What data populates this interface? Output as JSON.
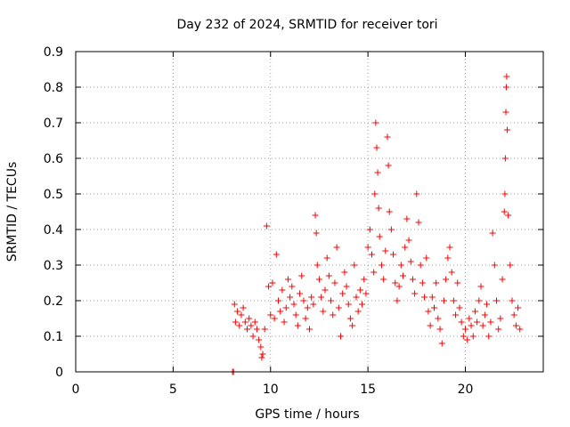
{
  "chart_data": {
    "type": "scatter",
    "title": "Day 232 of 2024, SRMTID for receiver tori",
    "xlabel": "GPS time / hours",
    "ylabel": "SRMTID / TECUs",
    "xlim": [
      0,
      24
    ],
    "ylim": [
      0,
      0.9
    ],
    "xticks": [
      0,
      5,
      10,
      15,
      20
    ],
    "xtick_labels": [
      "0",
      "5",
      "10",
      "15",
      "20"
    ],
    "yticks": [
      0,
      0.1,
      0.2,
      0.3,
      0.4,
      0.5,
      0.6,
      0.7,
      0.8,
      0.9
    ],
    "ytick_labels": [
      "0",
      "0.1",
      "0.2",
      "0.3",
      "0.4",
      "0.5",
      "0.6",
      "0.7",
      "0.8",
      "0.9"
    ],
    "grid": true,
    "marker": "plus",
    "color": "#ff0000",
    "series": [
      {
        "name": "SRMTID",
        "points": [
          [
            8.05,
            0.0
          ],
          [
            8.1,
            0.0
          ],
          [
            8.15,
            0.19
          ],
          [
            8.2,
            0.14
          ],
          [
            8.3,
            0.17
          ],
          [
            8.4,
            0.13
          ],
          [
            8.5,
            0.16
          ],
          [
            8.6,
            0.18
          ],
          [
            8.7,
            0.14
          ],
          [
            8.8,
            0.12
          ],
          [
            8.9,
            0.15
          ],
          [
            9.0,
            0.13
          ],
          [
            9.1,
            0.1
          ],
          [
            9.2,
            0.14
          ],
          [
            9.3,
            0.12
          ],
          [
            9.4,
            0.09
          ],
          [
            9.5,
            0.07
          ],
          [
            9.55,
            0.04
          ],
          [
            9.6,
            0.05
          ],
          [
            9.7,
            0.12
          ],
          [
            9.8,
            0.41
          ],
          [
            9.9,
            0.24
          ],
          [
            10.0,
            0.16
          ],
          [
            10.1,
            0.25
          ],
          [
            10.2,
            0.15
          ],
          [
            10.3,
            0.33
          ],
          [
            10.4,
            0.2
          ],
          [
            10.5,
            0.17
          ],
          [
            10.6,
            0.23
          ],
          [
            10.7,
            0.14
          ],
          [
            10.8,
            0.18
          ],
          [
            10.9,
            0.26
          ],
          [
            11.0,
            0.21
          ],
          [
            11.1,
            0.24
          ],
          [
            11.2,
            0.19
          ],
          [
            11.3,
            0.16
          ],
          [
            11.4,
            0.13
          ],
          [
            11.5,
            0.22
          ],
          [
            11.6,
            0.27
          ],
          [
            11.7,
            0.2
          ],
          [
            11.8,
            0.15
          ],
          [
            11.9,
            0.18
          ],
          [
            12.0,
            0.12
          ],
          [
            12.1,
            0.21
          ],
          [
            12.2,
            0.19
          ],
          [
            12.3,
            0.44
          ],
          [
            12.35,
            0.39
          ],
          [
            12.4,
            0.3
          ],
          [
            12.5,
            0.26
          ],
          [
            12.6,
            0.21
          ],
          [
            12.7,
            0.17
          ],
          [
            12.8,
            0.23
          ],
          [
            12.9,
            0.32
          ],
          [
            13.0,
            0.27
          ],
          [
            13.1,
            0.2
          ],
          [
            13.2,
            0.16
          ],
          [
            13.3,
            0.25
          ],
          [
            13.4,
            0.35
          ],
          [
            13.5,
            0.18
          ],
          [
            13.6,
            0.1
          ],
          [
            13.7,
            0.22
          ],
          [
            13.8,
            0.28
          ],
          [
            13.9,
            0.24
          ],
          [
            14.0,
            0.19
          ],
          [
            14.1,
            0.15
          ],
          [
            14.2,
            0.13
          ],
          [
            14.3,
            0.3
          ],
          [
            14.4,
            0.21
          ],
          [
            14.5,
            0.17
          ],
          [
            14.6,
            0.23
          ],
          [
            14.7,
            0.19
          ],
          [
            14.8,
            0.26
          ],
          [
            14.9,
            0.22
          ],
          [
            15.0,
            0.35
          ],
          [
            15.1,
            0.4
          ],
          [
            15.2,
            0.33
          ],
          [
            15.3,
            0.28
          ],
          [
            15.35,
            0.5
          ],
          [
            15.4,
            0.7
          ],
          [
            15.45,
            0.63
          ],
          [
            15.5,
            0.56
          ],
          [
            15.55,
            0.46
          ],
          [
            15.6,
            0.38
          ],
          [
            15.7,
            0.3
          ],
          [
            15.8,
            0.26
          ],
          [
            15.9,
            0.34
          ],
          [
            16.0,
            0.66
          ],
          [
            16.05,
            0.58
          ],
          [
            16.1,
            0.45
          ],
          [
            16.2,
            0.4
          ],
          [
            16.3,
            0.33
          ],
          [
            16.4,
            0.25
          ],
          [
            16.5,
            0.2
          ],
          [
            16.6,
            0.24
          ],
          [
            16.7,
            0.3
          ],
          [
            16.8,
            0.27
          ],
          [
            16.9,
            0.35
          ],
          [
            17.0,
            0.43
          ],
          [
            17.1,
            0.37
          ],
          [
            17.2,
            0.31
          ],
          [
            17.3,
            0.26
          ],
          [
            17.4,
            0.22
          ],
          [
            17.5,
            0.5
          ],
          [
            17.6,
            0.42
          ],
          [
            17.7,
            0.3
          ],
          [
            17.8,
            0.25
          ],
          [
            17.9,
            0.21
          ],
          [
            18.0,
            0.32
          ],
          [
            18.1,
            0.17
          ],
          [
            18.2,
            0.13
          ],
          [
            18.3,
            0.21
          ],
          [
            18.4,
            0.18
          ],
          [
            18.5,
            0.25
          ],
          [
            18.6,
            0.15
          ],
          [
            18.7,
            0.12
          ],
          [
            18.8,
            0.08
          ],
          [
            18.9,
            0.2
          ],
          [
            19.0,
            0.26
          ],
          [
            19.1,
            0.32
          ],
          [
            19.2,
            0.35
          ],
          [
            19.3,
            0.28
          ],
          [
            19.4,
            0.2
          ],
          [
            19.5,
            0.16
          ],
          [
            19.6,
            0.25
          ],
          [
            19.7,
            0.18
          ],
          [
            19.8,
            0.14
          ],
          [
            19.9,
            0.1
          ],
          [
            20.0,
            0.12
          ],
          [
            20.1,
            0.09
          ],
          [
            20.2,
            0.15
          ],
          [
            20.3,
            0.13
          ],
          [
            20.4,
            0.1
          ],
          [
            20.5,
            0.17
          ],
          [
            20.6,
            0.14
          ],
          [
            20.7,
            0.2
          ],
          [
            20.8,
            0.24
          ],
          [
            20.9,
            0.13
          ],
          [
            21.0,
            0.16
          ],
          [
            21.1,
            0.19
          ],
          [
            21.2,
            0.1
          ],
          [
            21.3,
            0.14
          ],
          [
            21.4,
            0.39
          ],
          [
            21.5,
            0.3
          ],
          [
            21.6,
            0.2
          ],
          [
            21.7,
            0.12
          ],
          [
            21.8,
            0.15
          ],
          [
            21.9,
            0.26
          ],
          [
            22.0,
            0.45
          ],
          [
            22.03,
            0.5
          ],
          [
            22.05,
            0.6
          ],
          [
            22.08,
            0.73
          ],
          [
            22.1,
            0.8
          ],
          [
            22.12,
            0.83
          ],
          [
            22.15,
            0.68
          ],
          [
            22.2,
            0.44
          ],
          [
            22.3,
            0.3
          ],
          [
            22.4,
            0.2
          ],
          [
            22.5,
            0.16
          ],
          [
            22.6,
            0.13
          ],
          [
            22.7,
            0.18
          ],
          [
            22.8,
            0.12
          ]
        ]
      }
    ]
  }
}
